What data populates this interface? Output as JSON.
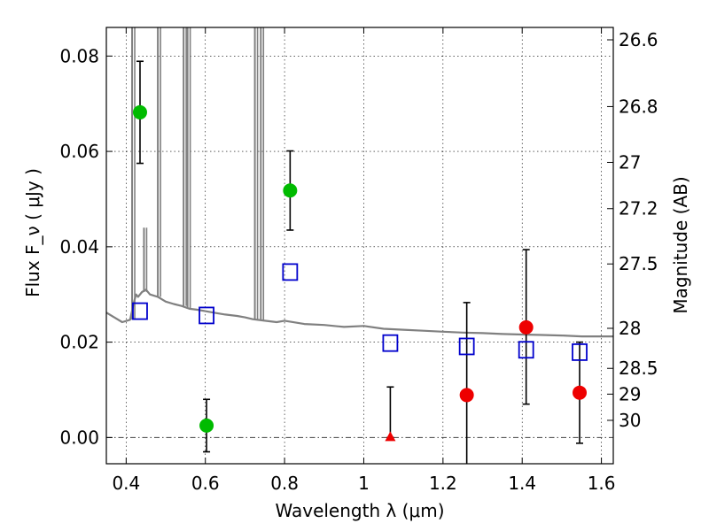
{
  "chart_data": {
    "type": "scatter",
    "xlabel": "Wavelength  λ (μm)",
    "ylabel": "Flux  F_ν  ( μJy )",
    "y2label": "Magnitude (AB)",
    "xlim": [
      0.35,
      1.63
    ],
    "ylim": [
      -0.0055,
      0.086
    ],
    "grid": true,
    "x_ticks": [
      0.4,
      0.6,
      0.8,
      1.0,
      1.2,
      1.4,
      1.6
    ],
    "x_tick_labels": [
      "0.4",
      "0.6",
      "0.8",
      "1",
      "1.2",
      "1.4",
      "1.6"
    ],
    "y_ticks": [
      0.0,
      0.02,
      0.04,
      0.06,
      0.08
    ],
    "y_tick_labels": [
      "0.00",
      "0.02",
      "0.04",
      "0.06",
      "0.08"
    ],
    "y2_ticks": [
      {
        "label": "26.6",
        "flux": 0.0834
      },
      {
        "label": "26.8",
        "flux": 0.0694
      },
      {
        "label": "27",
        "flux": 0.0577
      },
      {
        "label": "27.2",
        "flux": 0.048
      },
      {
        "label": "27.5",
        "flux": 0.0364
      },
      {
        "label": "28",
        "flux": 0.0229
      },
      {
        "label": "28.5",
        "flux": 0.0145
      },
      {
        "label": "29",
        "flux": 0.0091
      },
      {
        "label": "30",
        "flux": 0.0036
      }
    ],
    "sed_model": {
      "color": "#808080",
      "x": [
        0.35,
        0.37,
        0.39,
        0.41,
        0.42,
        0.425,
        0.43,
        0.44,
        0.45,
        0.46,
        0.48,
        0.5,
        0.52,
        0.54,
        0.56,
        0.58,
        0.6,
        0.62,
        0.65,
        0.68,
        0.7,
        0.72,
        0.75,
        0.78,
        0.8,
        0.85,
        0.9,
        0.95,
        1.0,
        1.05,
        1.1,
        1.15,
        1.2,
        1.25,
        1.3,
        1.35,
        1.4,
        1.45,
        1.5,
        1.55,
        1.6,
        1.63
      ],
      "y": [
        0.0262,
        0.0252,
        0.0242,
        0.0247,
        0.0285,
        0.03,
        0.0295,
        0.0305,
        0.031,
        0.03,
        0.0295,
        0.0285,
        0.028,
        0.0276,
        0.027,
        0.0268,
        0.0265,
        0.0262,
        0.0258,
        0.0255,
        0.0252,
        0.0248,
        0.0245,
        0.0242,
        0.0245,
        0.0238,
        0.0236,
        0.0232,
        0.0234,
        0.0228,
        0.0226,
        0.0224,
        0.0222,
        0.022,
        0.0219,
        0.0217,
        0.0216,
        0.0215,
        0.0214,
        0.0212,
        0.0212,
        0.0212
      ],
      "emission_lines": [
        {
          "x": 0.415,
          "peak": 0.086
        },
        {
          "x": 0.48,
          "peak": 0.086
        },
        {
          "x": 0.545,
          "peak": 0.086
        },
        {
          "x": 0.555,
          "peak": 0.086
        },
        {
          "x": 0.725,
          "peak": 0.086
        },
        {
          "x": 0.74,
          "peak": 0.086
        },
        {
          "x": 0.445,
          "peak": 0.044
        }
      ]
    },
    "series": [
      {
        "marker": "circle",
        "color": "#00bb00",
        "points": [
          {
            "x": 0.435,
            "y": 0.0682,
            "yerr_low": 0.0107,
            "yerr_high": 0.0107
          },
          {
            "x": 0.603,
            "y": 0.0025,
            "yerr_low": 0.0055,
            "yerr_high": 0.0055
          },
          {
            "x": 0.814,
            "y": 0.0518,
            "yerr_low": 0.0083,
            "yerr_high": 0.0083
          }
        ]
      },
      {
        "marker": "circle",
        "color": "#ee0000",
        "points": [
          {
            "x": 1.26,
            "y": 0.0089,
            "yerr_low": 0.0145,
            "yerr_high": 0.0194
          },
          {
            "x": 1.41,
            "y": 0.0231,
            "yerr_low": 0.0161,
            "yerr_high": 0.0163
          },
          {
            "x": 1.545,
            "y": 0.0094,
            "yerr_low": 0.0106,
            "yerr_high": 0.0106
          }
        ]
      },
      {
        "marker": "triangle",
        "color": "#ee0000",
        "points": [
          {
            "x": 1.067,
            "y": 0.0,
            "yerr_low": 0.0,
            "yerr_high": 0.0106
          }
        ]
      },
      {
        "marker": "square-open",
        "color": "#0000cc",
        "points": [
          {
            "x": 0.435,
            "y": 0.0265
          },
          {
            "x": 0.603,
            "y": 0.0256
          },
          {
            "x": 0.814,
            "y": 0.0347
          },
          {
            "x": 1.067,
            "y": 0.0198
          },
          {
            "x": 1.26,
            "y": 0.0191
          },
          {
            "x": 1.41,
            "y": 0.0184
          },
          {
            "x": 1.545,
            "y": 0.0179
          }
        ]
      }
    ]
  }
}
